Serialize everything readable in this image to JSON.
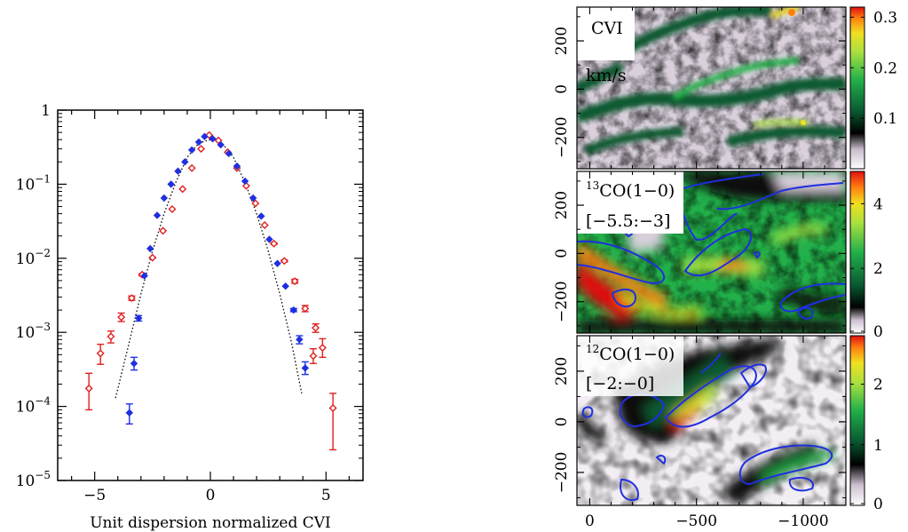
{
  "chart_data": [
    {
      "type": "scatter",
      "xlabel": "Unit dispersion normalized CVI",
      "ylabel": "",
      "yscale": "log",
      "xlim": [
        -6.6,
        6.6
      ],
      "ylim": [
        1e-05,
        1
      ],
      "x_ticks": [
        -5,
        0,
        5
      ],
      "x_tick_labels": [
        "−5",
        "0",
        "5"
      ],
      "y_ticks": [
        1,
        0.1,
        0.01,
        0.001,
        0.0001,
        1e-05
      ],
      "y_tick_labels": [
        {
          "base": "1",
          "exp": ""
        },
        {
          "base": "10",
          "exp": "−1"
        },
        {
          "base": "10",
          "exp": "−2"
        },
        {
          "base": "10",
          "exp": "−3"
        },
        {
          "base": "10",
          "exp": "−4"
        },
        {
          "base": "10",
          "exp": "−5"
        }
      ],
      "series": [
        {
          "color": "#e02020",
          "marker": "diamond-open",
          "points": [
            {
              "x": -5.25,
              "y": 0.000175,
              "lo": 9e-05,
              "hi": 0.00028
            },
            {
              "x": -4.75,
              "y": 0.00052,
              "lo": 0.00037,
              "hi": 0.00069
            },
            {
              "x": -4.3,
              "y": 0.00088,
              "lo": 0.00072,
              "hi": 0.00104
            },
            {
              "x": -3.85,
              "y": 0.0016,
              "lo": 0.0014,
              "hi": 0.00182
            },
            {
              "x": -3.4,
              "y": 0.0029,
              "lo": 0.0027,
              "hi": 0.0031
            },
            {
              "x": -2.95,
              "y": 0.006,
              "lo": 0.0058,
              "hi": 0.0062
            },
            {
              "x": -2.5,
              "y": 0.0102,
              "lo": 0.0101,
              "hi": 0.0103
            },
            {
              "x": -2.05,
              "y": 0.0235
            },
            {
              "x": -1.65,
              "y": 0.046
            },
            {
              "x": -1.2,
              "y": 0.086
            },
            {
              "x": -0.8,
              "y": 0.165
            },
            {
              "x": -0.4,
              "y": 0.3
            },
            {
              "x": -0.05,
              "y": 0.46
            },
            {
              "x": 0.35,
              "y": 0.39
            },
            {
              "x": 0.75,
              "y": 0.27
            },
            {
              "x": 1.15,
              "y": 0.165
            },
            {
              "x": 1.55,
              "y": 0.095
            },
            {
              "x": 1.95,
              "y": 0.055
            },
            {
              "x": 2.35,
              "y": 0.028
            },
            {
              "x": 2.75,
              "y": 0.0158,
              "lo": 0.0154,
              "hi": 0.0162
            },
            {
              "x": 3.2,
              "y": 0.0092,
              "lo": 0.0089,
              "hi": 0.0095
            },
            {
              "x": 3.65,
              "y": 0.0049,
              "lo": 0.0046,
              "hi": 0.0052
            },
            {
              "x": 4.1,
              "y": 0.0021,
              "lo": 0.0019,
              "hi": 0.0023
            },
            {
              "x": 4.55,
              "y": 0.00115,
              "lo": 0.001,
              "hi": 0.0013
            },
            {
              "x": 4.45,
              "y": 0.00048,
              "lo": 0.00038,
              "hi": 0.0006
            },
            {
              "x": 4.85,
              "y": 0.00062,
              "lo": 0.00046,
              "hi": 0.00082
            },
            {
              "x": 5.3,
              "y": 9.5e-05,
              "lo": 2.6e-05,
              "hi": 0.00015
            }
          ]
        },
        {
          "color": "#1f2fe0",
          "marker": "diamond-filled",
          "points": [
            {
              "x": -3.5,
              "y": 8.2e-05,
              "lo": 5.8e-05,
              "hi": 0.000108
            },
            {
              "x": -3.3,
              "y": 0.00038,
              "lo": 0.00031,
              "hi": 0.00046
            },
            {
              "x": -3.1,
              "y": 0.00155,
              "lo": 0.00142,
              "hi": 0.00168
            },
            {
              "x": -2.85,
              "y": 0.0058
            },
            {
              "x": -2.6,
              "y": 0.0135
            },
            {
              "x": -2.3,
              "y": 0.038
            },
            {
              "x": -2.0,
              "y": 0.065
            },
            {
              "x": -1.7,
              "y": 0.1
            },
            {
              "x": -1.4,
              "y": 0.15
            },
            {
              "x": -1.1,
              "y": 0.2
            },
            {
              "x": -0.8,
              "y": 0.29
            },
            {
              "x": -0.5,
              "y": 0.37
            },
            {
              "x": -0.25,
              "y": 0.44
            },
            {
              "x": 0.1,
              "y": 0.41
            },
            {
              "x": 0.45,
              "y": 0.34
            },
            {
              "x": 0.8,
              "y": 0.26
            },
            {
              "x": 1.15,
              "y": 0.175
            },
            {
              "x": 1.5,
              "y": 0.11
            },
            {
              "x": 1.85,
              "y": 0.065
            },
            {
              "x": 2.2,
              "y": 0.037
            },
            {
              "x": 2.55,
              "y": 0.018
            },
            {
              "x": 2.9,
              "y": 0.0085
            },
            {
              "x": 3.25,
              "y": 0.0042
            },
            {
              "x": 3.6,
              "y": 0.002,
              "lo": 0.0019,
              "hi": 0.0021
            },
            {
              "x": 3.85,
              "y": 0.0008,
              "lo": 0.0007,
              "hi": 0.0009
            },
            {
              "x": 4.1,
              "y": 0.00033,
              "lo": 0.00027,
              "hi": 0.0004
            }
          ]
        },
        {
          "color": "#000000",
          "marker": "dotted-line",
          "points": [
            {
              "x": -4.1,
              "y": 0.00013
            },
            {
              "x": -3.5,
              "y": 0.00075
            },
            {
              "x": -3.0,
              "y": 0.0033
            },
            {
              "x": -2.5,
              "y": 0.0125
            },
            {
              "x": -2.0,
              "y": 0.04
            },
            {
              "x": -1.5,
              "y": 0.105
            },
            {
              "x": -1.0,
              "y": 0.23
            },
            {
              "x": -0.5,
              "y": 0.36
            },
            {
              "x": 0.0,
              "y": 0.4
            },
            {
              "x": 0.5,
              "y": 0.36
            },
            {
              "x": 1.0,
              "y": 0.23
            },
            {
              "x": 1.5,
              "y": 0.105
            },
            {
              "x": 2.0,
              "y": 0.04
            },
            {
              "x": 2.5,
              "y": 0.0125
            },
            {
              "x": 3.0,
              "y": 0.0033
            },
            {
              "x": 3.5,
              "y": 0.00075
            },
            {
              "x": 3.95,
              "y": 0.00015
            }
          ]
        }
      ]
    },
    {
      "type": "heatmap",
      "panels": [
        {
          "label_lines": [
            "CVI",
            "km/s"
          ],
          "colorbar_range": [
            0,
            0.32
          ],
          "colorbar_ticks": [
            "0.3",
            "0.2",
            "0.1"
          ],
          "colorbar_tick_values": [
            0.3,
            0.2,
            0.1
          ],
          "scheme": "cvi"
        },
        {
          "label_lines": [
            "13CO(1−0)",
            "[−5.5:−3]"
          ],
          "label_superscript": "13",
          "label_main": "CO(1−0)",
          "colorbar_range": [
            0,
            5
          ],
          "colorbar_ticks": [
            "4",
            "2",
            "0"
          ],
          "colorbar_tick_values": [
            4,
            2,
            0
          ],
          "scheme": "co13"
        },
        {
          "label_lines": [
            "12CO(1−0)",
            "[−2:−0]"
          ],
          "label_superscript": "12",
          "label_main": "CO(1−0)",
          "colorbar_range": [
            0,
            2.8
          ],
          "colorbar_ticks": [
            "2",
            "1",
            "0"
          ],
          "colorbar_tick_values": [
            2,
            1,
            0
          ],
          "scheme": "co12"
        }
      ],
      "y_tick_labels": [
        "200",
        "0",
        "−200"
      ],
      "y_ticks": [
        200,
        0,
        -200
      ],
      "ylim": [
        -330,
        340
      ],
      "x_tick_labels": [
        "0",
        "−500",
        "−1000"
      ],
      "x_ticks": [
        0,
        -500,
        -1000
      ],
      "xlim": [
        60,
        -1200
      ]
    }
  ]
}
